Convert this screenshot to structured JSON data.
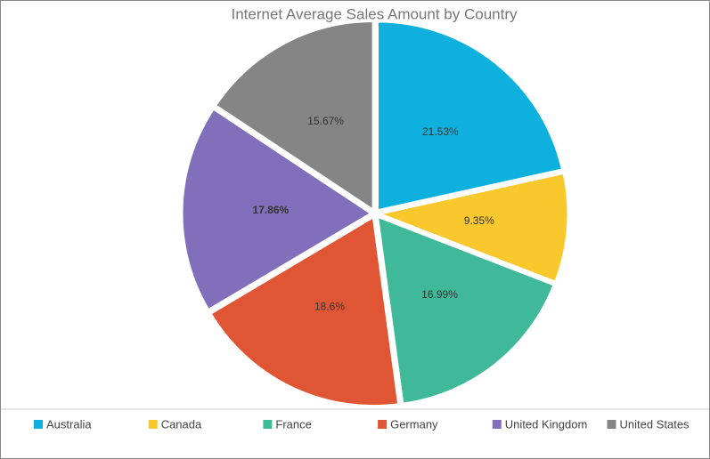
{
  "chart_data": {
    "type": "pie",
    "title": "Internet Average Sales Amount by Country",
    "categories": [
      "Australia",
      "Canada",
      "France",
      "Germany",
      "United Kingdom",
      "United States"
    ],
    "values": [
      21.53,
      9.35,
      16.99,
      18.6,
      17.86,
      15.67
    ],
    "value_labels": [
      "21.53%",
      "9.35%",
      "16.99%",
      "18.6%",
      "17.86%",
      "15.67%"
    ],
    "colors": [
      "#0eb0dd",
      "#f8c82c",
      "#3fb99a",
      "#e05634",
      "#816fbb",
      "#858585"
    ],
    "legend": "bottom"
  }
}
